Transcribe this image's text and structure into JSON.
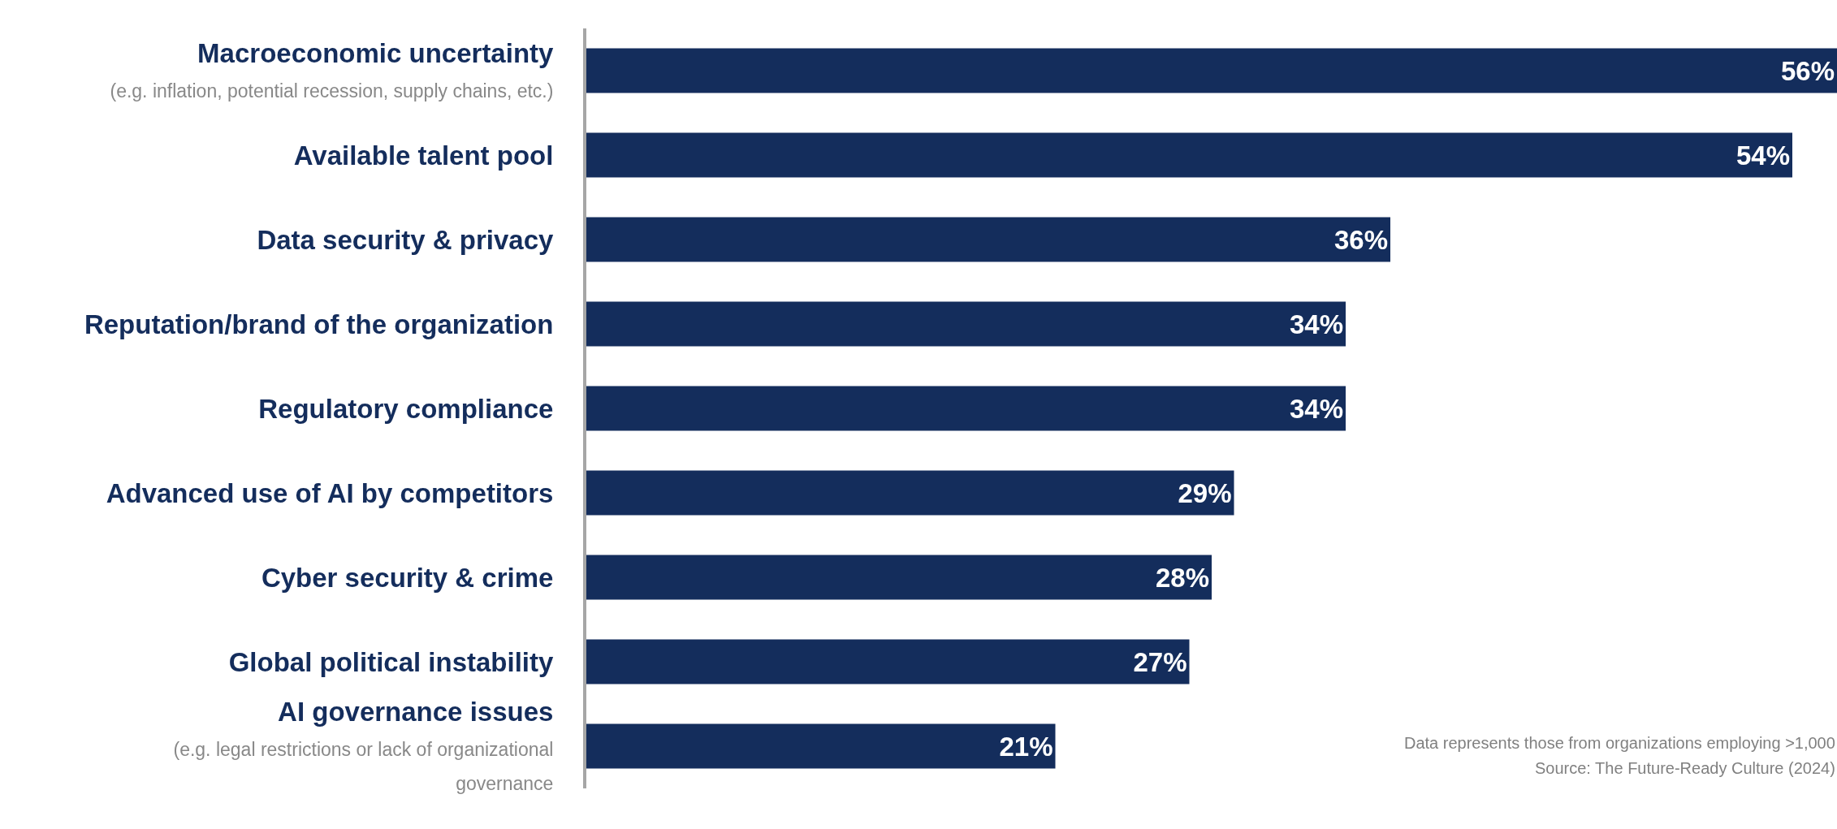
{
  "chart_data": {
    "type": "bar",
    "orientation": "horizontal",
    "categories": [
      "Macroeconomic uncertainty\n(e.g. inflation, potential recession, supply chains, etc.)",
      "Available talent pool",
      "Data security & privacy",
      "Reputation/brand of the organization",
      "Regulatory compliance",
      "Advanced use of AI by competitors",
      "Cyber security & crime",
      "Global political instability",
      "AI governance issues\n(e.g. legal restrictions or lack of organizational\ngovernance"
    ],
    "values": [
      56,
      54,
      36,
      34,
      34,
      29,
      28,
      27,
      21
    ],
    "value_labels": [
      "56%",
      "54%",
      "36%",
      "34%",
      "34%",
      "29%",
      "28%",
      "27%",
      "21%"
    ],
    "color": "#142d5c",
    "xlim": [
      0,
      56
    ],
    "tick_labels": "y",
    "annotations": [
      "Data represents those from organizations employing >1,000",
      "Source: The Future-Ready Culture (2024)"
    ]
  }
}
